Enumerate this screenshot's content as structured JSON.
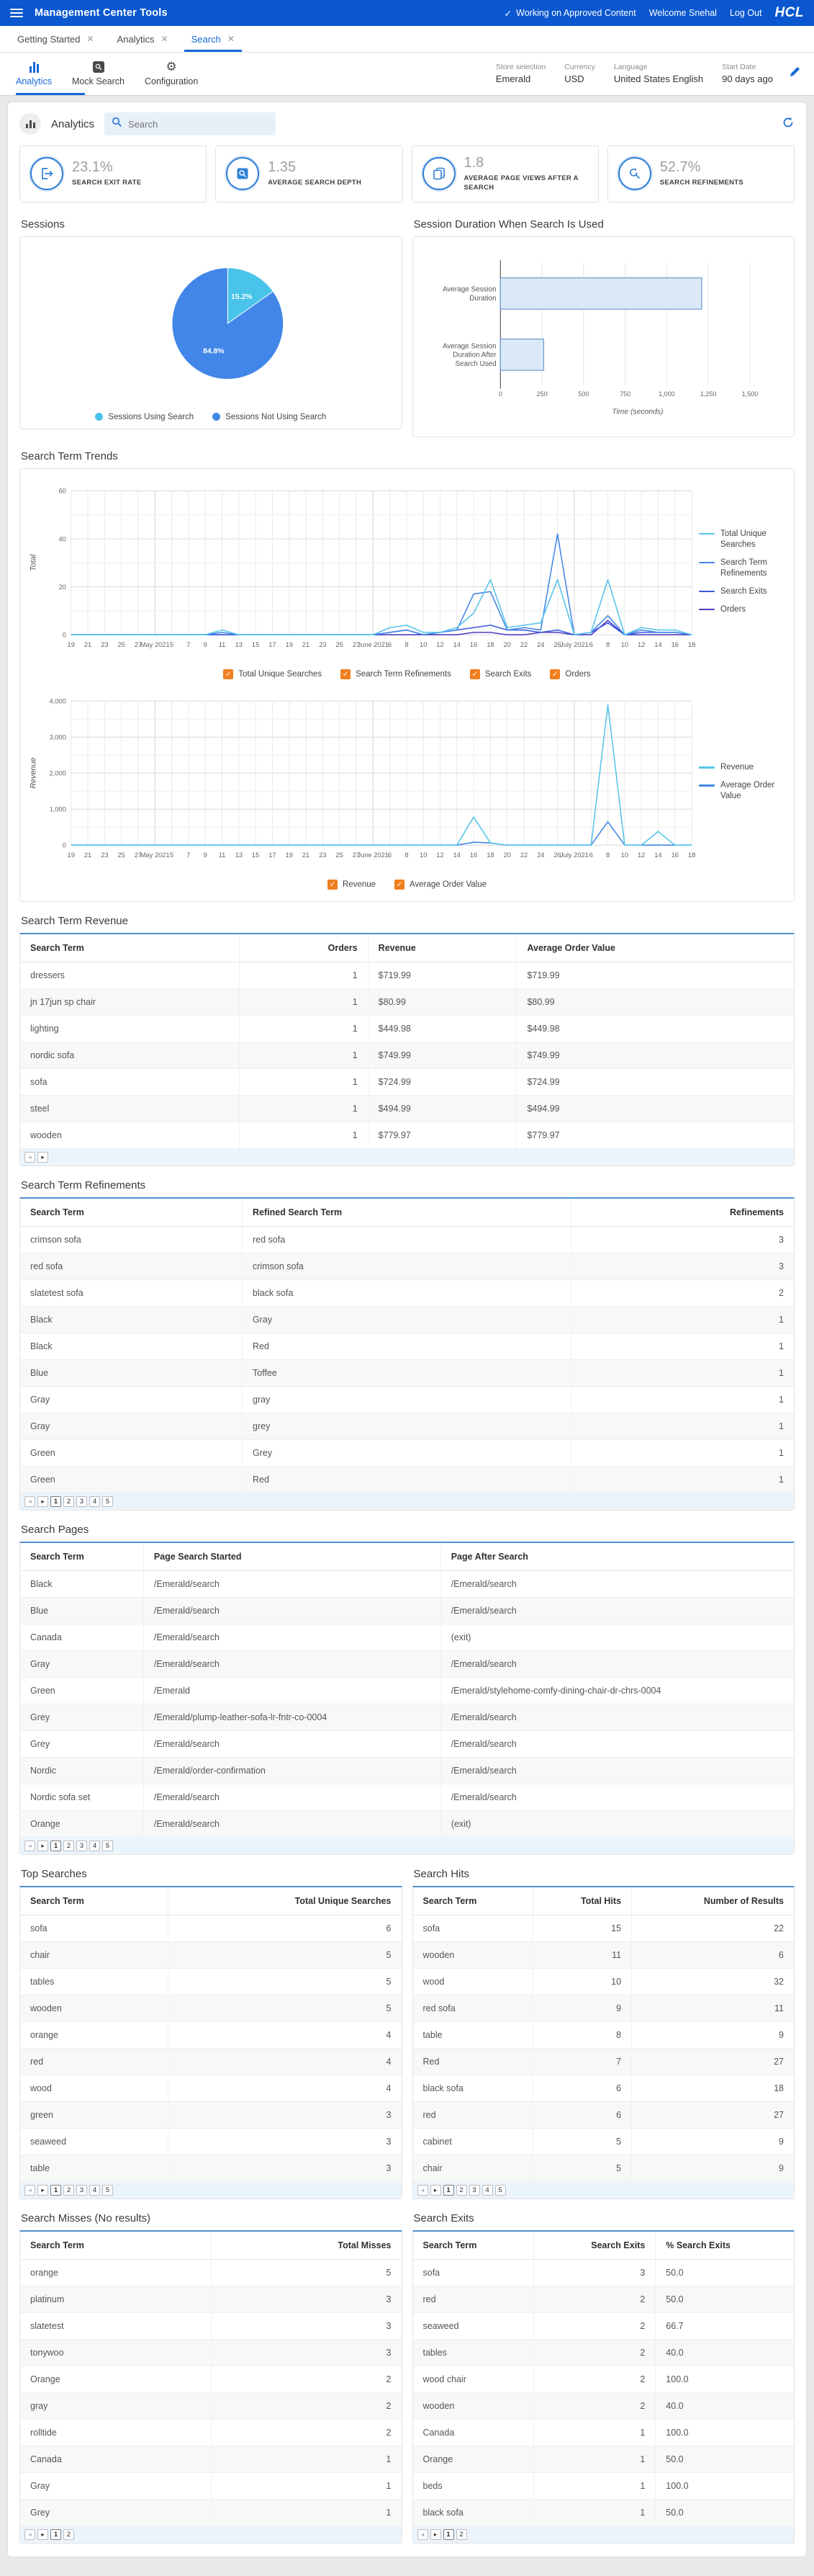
{
  "header": {
    "title": "Management Center Tools",
    "status": "Working on Approved Content",
    "check": "✓",
    "welcome": "Welcome Snehal",
    "logout": "Log Out",
    "brand": "HCL"
  },
  "tabs": [
    {
      "label": "Getting Started",
      "close": "✕"
    },
    {
      "label": "Analytics",
      "close": "✕"
    },
    {
      "label": "Search",
      "close": "✕"
    }
  ],
  "toolbar": {
    "items": [
      {
        "label": "Analytics"
      },
      {
        "label": "Mock Search"
      },
      {
        "label": "Configuration"
      }
    ],
    "settings": [
      {
        "label": "Store selection",
        "value": "Emerald"
      },
      {
        "label": "Currency",
        "value": "USD"
      },
      {
        "label": "Language",
        "value": "United States English"
      },
      {
        "label": "Start Date",
        "value": "90 days ago"
      }
    ]
  },
  "panel": {
    "title": "Analytics",
    "search_placeholder": "Search"
  },
  "metrics": [
    {
      "value": "23.1%",
      "label": "SEARCH EXIT RATE"
    },
    {
      "value": "1.35",
      "label": "AVERAGE SEARCH DEPTH"
    },
    {
      "value": "1.8",
      "label": "AVERAGE PAGE VIEWS AFTER A SEARCH"
    },
    {
      "value": "52.7%",
      "label": "SEARCH REFINEMENTS"
    }
  ],
  "sections": {
    "sessions": "Sessions",
    "session_duration": "Session Duration When Search Is Used",
    "trends": "Search Term Trends",
    "revenue_table": "Search Term Revenue",
    "refinements_table": "Search Term Refinements",
    "pages_table": "Search Pages",
    "top_searches": "Top Searches",
    "search_hits": "Search Hits",
    "search_misses": "Search Misses (No results)",
    "search_exits": "Search Exits"
  },
  "chart_data": [
    {
      "type": "pie",
      "title": "Sessions",
      "slices": [
        {
          "label": "Sessions Using Search",
          "value": 15.2,
          "text": "15.2%",
          "color": "#49c3ea"
        },
        {
          "label": "Sessions Not Using Search",
          "value": 84.8,
          "text": "84.8%",
          "color": "#4186e8"
        }
      ],
      "legend_position": "bottom"
    },
    {
      "type": "bar",
      "title": "Session Duration When Search Is Used",
      "orientation": "horizontal",
      "categories": [
        "Average Session Duration",
        "Average Session Duration After Search Used"
      ],
      "values": [
        1210,
        260
      ],
      "xlabel": "Time (seconds)",
      "xlim": [
        0,
        1650
      ],
      "xticks": [
        0,
        250,
        500,
        750,
        1000,
        1250,
        1500
      ],
      "bar_fill": "#dce9f7",
      "bar_stroke": "#6b9bd2"
    },
    {
      "type": "line",
      "title": "Search Term Trends - Totals",
      "ylabel": "Total",
      "ylim": [
        0,
        60
      ],
      "yticks": [
        0,
        20,
        40,
        60
      ],
      "yminor": 10,
      "x": [
        "19",
        "21",
        "23",
        "25",
        "27",
        "May 2021",
        "5",
        "7",
        "9",
        "11",
        "13",
        "15",
        "17",
        "19",
        "21",
        "23",
        "25",
        "27",
        "June 2021",
        "6",
        "8",
        "10",
        "12",
        "14",
        "16",
        "18",
        "20",
        "22",
        "24",
        "26",
        "July 2021",
        "6",
        "8",
        "10",
        "12",
        "14",
        "16",
        "18"
      ],
      "series": [
        {
          "name": "Total Unique Searches",
          "color": "#57c4ea",
          "values": [
            0,
            0,
            0,
            0,
            0,
            0,
            0,
            0,
            0,
            2,
            0,
            0,
            0,
            0,
            0,
            0,
            0,
            0,
            0,
            3,
            4,
            1,
            1,
            3,
            9,
            23,
            3,
            4,
            5,
            23,
            0,
            1,
            23,
            0,
            3,
            2,
            2,
            0
          ]
        },
        {
          "name": "Search Term Refinements",
          "color": "#4287e5",
          "values": [
            0,
            0,
            0,
            0,
            0,
            0,
            0,
            0,
            0,
            1,
            0,
            0,
            0,
            0,
            0,
            0,
            0,
            0,
            0,
            1,
            2,
            0,
            1,
            2,
            17,
            18,
            2,
            3,
            2,
            42,
            0,
            1,
            8,
            0,
            2,
            1,
            1,
            0
          ]
        },
        {
          "name": "Search Exits",
          "color": "#3d5be0",
          "values": [
            0,
            0,
            0,
            0,
            0,
            0,
            0,
            0,
            0,
            0,
            0,
            0,
            0,
            0,
            0,
            0,
            0,
            0,
            0,
            1,
            2,
            0,
            1,
            2,
            3,
            4,
            2,
            2,
            1,
            2,
            0,
            1,
            5,
            0,
            1,
            1,
            1,
            0
          ]
        },
        {
          "name": "Orders",
          "color": "#4b3fbf",
          "values": [
            0,
            0,
            0,
            0,
            0,
            0,
            0,
            0,
            0,
            0,
            0,
            0,
            0,
            0,
            0,
            0,
            0,
            0,
            0,
            0,
            0,
            0,
            0,
            0,
            1,
            1,
            0,
            0,
            1,
            1,
            0,
            0,
            6,
            0,
            0,
            0,
            0,
            0
          ]
        }
      ],
      "legend_position": "right",
      "checkboxes": [
        "Total Unique Searches",
        "Search Term Refinements",
        "Search Exits",
        "Orders"
      ]
    },
    {
      "type": "line",
      "title": "Search Term Trends - Revenue",
      "ylabel": "Revenue",
      "ylim": [
        0,
        4000
      ],
      "yticks": [
        0,
        1000,
        2000,
        3000,
        4000
      ],
      "yminor": 500,
      "x": [
        "19",
        "21",
        "23",
        "25",
        "27",
        "May 2021",
        "5",
        "7",
        "9",
        "11",
        "13",
        "15",
        "17",
        "19",
        "21",
        "23",
        "25",
        "27",
        "June 2021",
        "6",
        "8",
        "10",
        "12",
        "14",
        "16",
        "18",
        "20",
        "22",
        "24",
        "26",
        "July 2021",
        "6",
        "8",
        "10",
        "12",
        "14",
        "16",
        "18"
      ],
      "series": [
        {
          "name": "Revenue",
          "color": "#57c4ea",
          "values": [
            0,
            0,
            0,
            0,
            0,
            0,
            0,
            0,
            0,
            0,
            0,
            0,
            0,
            0,
            0,
            0,
            0,
            0,
            0,
            0,
            0,
            0,
            0,
            0,
            780,
            60,
            0,
            0,
            0,
            0,
            0,
            0,
            3900,
            0,
            0,
            380,
            0,
            0
          ]
        },
        {
          "name": "Average Order Value",
          "color": "#4287e5",
          "values": [
            0,
            0,
            0,
            0,
            0,
            0,
            0,
            0,
            0,
            0,
            0,
            0,
            0,
            0,
            0,
            0,
            0,
            0,
            0,
            0,
            0,
            0,
            0,
            0,
            80,
            60,
            0,
            0,
            0,
            0,
            0,
            0,
            650,
            0,
            0,
            0,
            0,
            0
          ]
        }
      ],
      "legend_position": "right",
      "checkboxes": [
        "Revenue",
        "Average Order Value"
      ]
    }
  ],
  "tables": {
    "revenue": {
      "headers": [
        "Search Term",
        "Orders",
        "Revenue",
        "Average Order Value"
      ],
      "align": [
        "l",
        "r",
        "l",
        "l"
      ],
      "rows": [
        [
          "dressers",
          "1",
          "$719.99",
          "$719.99"
        ],
        [
          "jn 17jun sp chair",
          "1",
          "$80.99",
          "$80.99"
        ],
        [
          "lighting",
          "1",
          "$449.98",
          "$449.98"
        ],
        [
          "nordic sofa",
          "1",
          "$749.99",
          "$749.99"
        ],
        [
          "sofa",
          "1",
          "$724.99",
          "$724.99"
        ],
        [
          "steel",
          "1",
          "$494.99",
          "$494.99"
        ],
        [
          "wooden",
          "1",
          "$779.97",
          "$779.97"
        ]
      ],
      "pager": {
        "pages": []
      }
    },
    "refinements": {
      "headers": [
        "Search Term",
        "Refined Search Term",
        "Refinements"
      ],
      "align": [
        "l",
        "l",
        "r"
      ],
      "rows": [
        [
          "crimson sofa",
          "red sofa",
          "3"
        ],
        [
          "red sofa",
          "crimson sofa",
          "3"
        ],
        [
          "slatetest sofa",
          "black sofa",
          "2"
        ],
        [
          "Black",
          "Gray",
          "1"
        ],
        [
          "Black",
          "Red",
          "1"
        ],
        [
          "Blue",
          "Toffee",
          "1"
        ],
        [
          "Gray",
          "gray",
          "1"
        ],
        [
          "Gray",
          "grey",
          "1"
        ],
        [
          "Green",
          "Grey",
          "1"
        ],
        [
          "Green",
          "Red",
          "1"
        ]
      ],
      "pager": {
        "pages": [
          "1",
          "2",
          "3",
          "4",
          "5"
        ]
      }
    },
    "pages": {
      "headers": [
        "Search Term",
        "Page Search Started",
        "Page After Search"
      ],
      "align": [
        "l",
        "l",
        "l"
      ],
      "rows": [
        [
          "Black",
          "/Emerald/search",
          "/Emerald/search"
        ],
        [
          "Blue",
          "/Emerald/search",
          "/Emerald/search"
        ],
        [
          "Canada",
          "/Emerald/search",
          "(exit)"
        ],
        [
          "Gray",
          "/Emerald/search",
          "/Emerald/search"
        ],
        [
          "Green",
          "/Emerald",
          "/Emerald/stylehome-comfy-dining-chair-dr-chrs-0004"
        ],
        [
          "Grey",
          "/Emerald/plump-leather-sofa-lr-fntr-co-0004",
          "/Emerald/search"
        ],
        [
          "Grey",
          "/Emerald/search",
          "/Emerald/search"
        ],
        [
          "Nordic",
          "/Emerald/order-confirmation",
          "/Emerald/search"
        ],
        [
          "Nordic sofa set",
          "/Emerald/search",
          "/Emerald/search"
        ],
        [
          "Orange",
          "/Emerald/search",
          "(exit)"
        ]
      ],
      "pager": {
        "pages": [
          "1",
          "2",
          "3",
          "4",
          "5"
        ]
      }
    },
    "top": {
      "headers": [
        "Search Term",
        "Total Unique Searches"
      ],
      "align": [
        "l",
        "r"
      ],
      "rows": [
        [
          "sofa",
          "6"
        ],
        [
          "chair",
          "5"
        ],
        [
          "tables",
          "5"
        ],
        [
          "wooden",
          "5"
        ],
        [
          "orange",
          "4"
        ],
        [
          "red",
          "4"
        ],
        [
          "wood",
          "4"
        ],
        [
          "green",
          "3"
        ],
        [
          "seaweed",
          "3"
        ],
        [
          "table",
          "3"
        ]
      ],
      "pager": {
        "pages": [
          "1",
          "2",
          "3",
          "4",
          "5"
        ]
      }
    },
    "hits": {
      "headers": [
        "Search Term",
        "Total Hits",
        "Number of Results"
      ],
      "align": [
        "l",
        "r",
        "r"
      ],
      "rows": [
        [
          "sofa",
          "15",
          "22"
        ],
        [
          "wooden",
          "11",
          "6"
        ],
        [
          "wood",
          "10",
          "32"
        ],
        [
          "red sofa",
          "9",
          "11"
        ],
        [
          "table",
          "8",
          "9"
        ],
        [
          "Red",
          "7",
          "27"
        ],
        [
          "black sofa",
          "6",
          "18"
        ],
        [
          "red",
          "6",
          "27"
        ],
        [
          "cabinet",
          "5",
          "9"
        ],
        [
          "chair",
          "5",
          "9"
        ]
      ],
      "pager": {
        "pages": [
          "1",
          "2",
          "3",
          "4",
          "5"
        ]
      }
    },
    "misses": {
      "headers": [
        "Search Term",
        "Total Misses"
      ],
      "align": [
        "l",
        "r"
      ],
      "rows": [
        [
          "orange",
          "5"
        ],
        [
          "platinum",
          "3"
        ],
        [
          "slatetest",
          "3"
        ],
        [
          "tonywoo",
          "3"
        ],
        [
          "Orange",
          "2"
        ],
        [
          "gray",
          "2"
        ],
        [
          "rolltide",
          "2"
        ],
        [
          "Canada",
          "1"
        ],
        [
          "Gray",
          "1"
        ],
        [
          "Grey",
          "1"
        ]
      ],
      "pager": {
        "pages": [
          "1",
          "2"
        ]
      }
    },
    "exits": {
      "headers": [
        "Search Term",
        "Search Exits",
        "% Search Exits"
      ],
      "align": [
        "l",
        "r",
        "l"
      ],
      "rows": [
        [
          "sofa",
          "3",
          "50.0"
        ],
        [
          "red",
          "2",
          "50.0"
        ],
        [
          "seaweed",
          "2",
          "66.7"
        ],
        [
          "tables",
          "2",
          "40.0"
        ],
        [
          "wood chair",
          "2",
          "100.0"
        ],
        [
          "wooden",
          "2",
          "40.0"
        ],
        [
          "Canada",
          "1",
          "100.0"
        ],
        [
          "Orange",
          "1",
          "50.0"
        ],
        [
          "beds",
          "1",
          "100.0"
        ],
        [
          "black sofa",
          "1",
          "50.0"
        ]
      ],
      "pager": {
        "pages": [
          "1",
          "2"
        ]
      }
    }
  },
  "colors": {
    "header_blue": "#0a57cf",
    "accent_blue": "#1669d6",
    "checkbox_orange": "#f07f1f",
    "table_top_border": "#4f90cd",
    "pie_light": "#49c3ea",
    "pie_dark": "#4186e8"
  }
}
